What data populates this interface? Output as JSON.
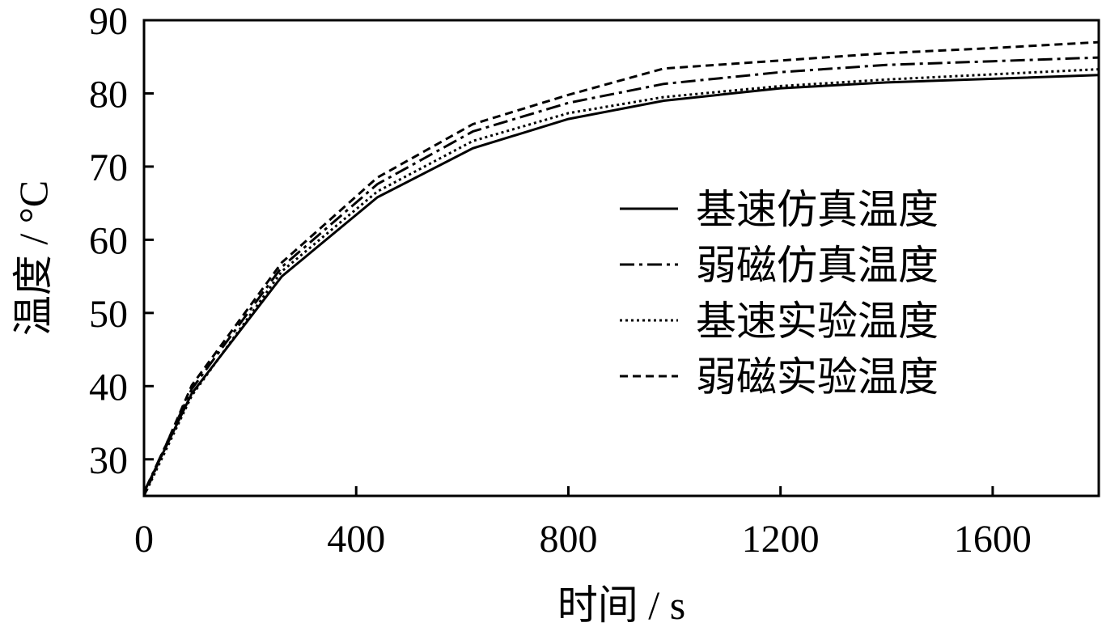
{
  "chart_data": {
    "type": "line",
    "xlabel": "时间 / s",
    "ylabel": "温度 / °C",
    "xlim": [
      0,
      1800
    ],
    "ylim": [
      25,
      90
    ],
    "xticks": [
      0,
      400,
      800,
      1200,
      1600
    ],
    "yticks": [
      30,
      40,
      50,
      60,
      70,
      80,
      90
    ],
    "grid": false,
    "legend_position": "right",
    "x": [
      0,
      90,
      260,
      440,
      620,
      800,
      980,
      1200,
      1400,
      1600,
      1800
    ],
    "series": [
      {
        "name": "基速仿真温度",
        "style": "solid",
        "values": [
          25.5,
          39.0,
          55.0,
          65.8,
          72.5,
          76.5,
          79.0,
          80.7,
          81.5,
          82.0,
          82.5
        ]
      },
      {
        "name": "弱磁仿真温度",
        "style": "dashdot",
        "values": [
          25.5,
          39.6,
          56.3,
          67.6,
          74.8,
          78.7,
          81.3,
          82.9,
          83.9,
          84.4,
          84.9
        ]
      },
      {
        "name": "基速实验温度",
        "style": "dotted",
        "values": [
          25.0,
          38.7,
          55.7,
          66.6,
          73.5,
          77.3,
          79.5,
          81.0,
          81.9,
          82.6,
          83.3
        ]
      },
      {
        "name": "弱磁实验温度",
        "style": "dashed",
        "values": [
          25.0,
          40.1,
          56.9,
          68.5,
          75.8,
          79.8,
          83.4,
          84.5,
          85.5,
          86.2,
          87.0
        ]
      }
    ]
  }
}
